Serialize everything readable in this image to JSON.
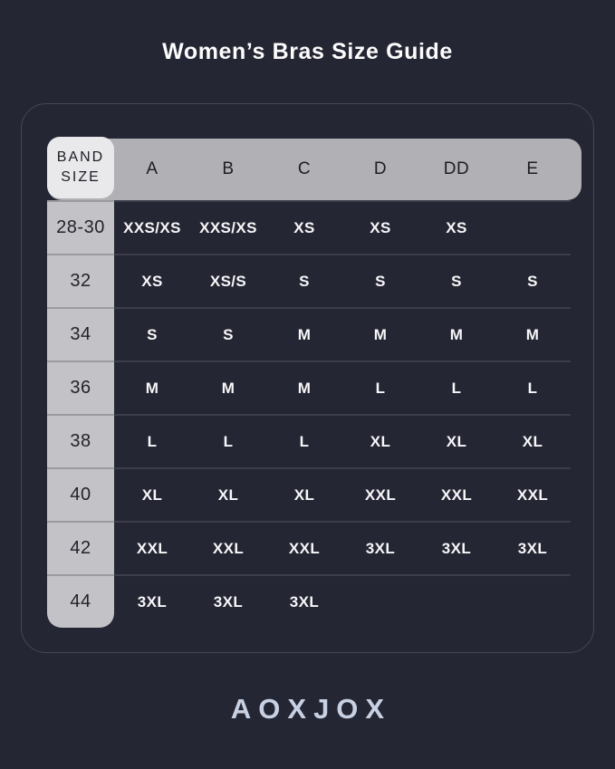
{
  "title": "Women’s Bras Size Guide",
  "brand_logo": "AOXJOX",
  "size_table": {
    "corner": {
      "line1": "BAND",
      "line2": "SIZE"
    },
    "cup_columns": [
      "A",
      "B",
      "C",
      "D",
      "DD",
      "E"
    ],
    "rows": [
      {
        "band": "28-30",
        "values": [
          "XXS/XS",
          "XXS/XS",
          "XS",
          "XS",
          "XS",
          ""
        ]
      },
      {
        "band": "32",
        "values": [
          "XS",
          "XS/S",
          "S",
          "S",
          "S",
          "S"
        ]
      },
      {
        "band": "34",
        "values": [
          "S",
          "S",
          "M",
          "M",
          "M",
          "M"
        ]
      },
      {
        "band": "36",
        "values": [
          "M",
          "M",
          "M",
          "L",
          "L",
          "L"
        ]
      },
      {
        "band": "38",
        "values": [
          "L",
          "L",
          "L",
          "XL",
          "XL",
          "XL"
        ]
      },
      {
        "band": "40",
        "values": [
          "XL",
          "XL",
          "XL",
          "XXL",
          "XXL",
          "XXL"
        ]
      },
      {
        "band": "42",
        "values": [
          "XXL",
          "XXL",
          "XXL",
          "3XL",
          "3XL",
          "3XL"
        ]
      },
      {
        "band": "44",
        "values": [
          "3XL",
          "3XL",
          "3XL",
          "",
          "",
          ""
        ]
      }
    ]
  },
  "colors": {
    "background": "#252633",
    "card_border": "#454752",
    "header_band": "#b0b0b5",
    "corner_cell": "#e9e9ec",
    "label_column": "#c2c2c7",
    "header_text": "#1d1d24",
    "label_text": "#23232b",
    "data_text": "#f7f7f9",
    "title_text": "#fcfcfd",
    "logo": "#c8d1e3",
    "separator": "#3b3d48"
  }
}
